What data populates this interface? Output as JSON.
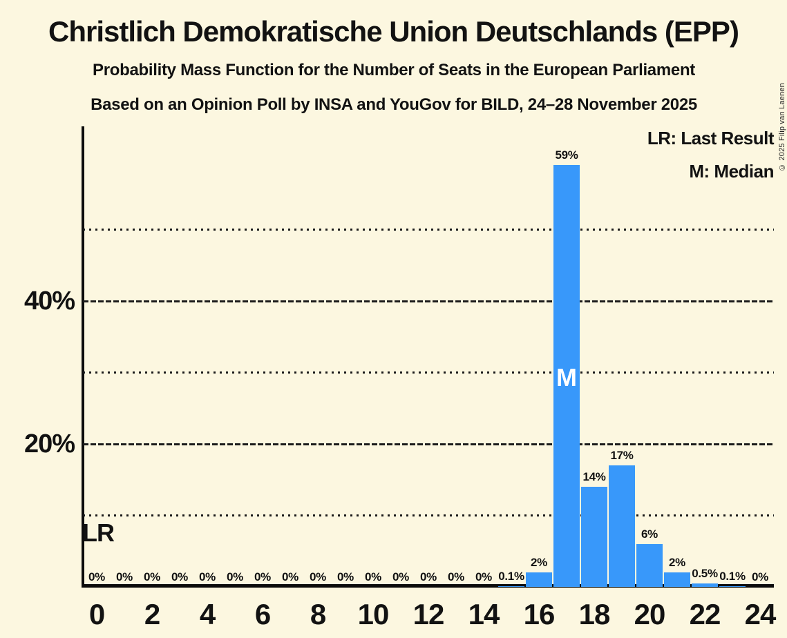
{
  "title": "Christlich Demokratische Union Deutschlands (EPP)",
  "subtitle1": "Probability Mass Function for the Number of Seats in the European Parliament",
  "subtitle2": "Based on an Opinion Poll by INSA and YouGov for BILD, 24–28 November 2025",
  "copyright": "© 2025 Filip van Laenen",
  "legend": {
    "lr": "LR: Last Result",
    "m": "M: Median"
  },
  "chart_data": {
    "type": "bar",
    "title": "Christlich Demokratische Union Deutschlands (EPP)",
    "x": [
      0,
      1,
      2,
      3,
      4,
      5,
      6,
      7,
      8,
      9,
      10,
      11,
      12,
      13,
      14,
      15,
      16,
      17,
      18,
      19,
      20,
      21,
      22,
      23,
      24
    ],
    "values": [
      0,
      0,
      0,
      0,
      0,
      0,
      0,
      0,
      0,
      0,
      0,
      0,
      0,
      0,
      0,
      0.1,
      2,
      59,
      14,
      17,
      6,
      2,
      0.5,
      0.1,
      0
    ],
    "bar_labels": [
      "0%",
      "0%",
      "0%",
      "0%",
      "0%",
      "0%",
      "0%",
      "0%",
      "0%",
      "0%",
      "0%",
      "0%",
      "0%",
      "0%",
      "0%",
      "0.1%",
      "2%",
      "59%",
      "14%",
      "17%",
      "6%",
      "2%",
      "0.5%",
      "0.1%",
      "0%"
    ],
    "x_tick_labels": [
      "0",
      "2",
      "4",
      "6",
      "8",
      "10",
      "12",
      "14",
      "16",
      "18",
      "20",
      "22",
      "24"
    ],
    "y_tick_labels": [
      {
        "value": 20,
        "label": "20%"
      },
      {
        "value": 40,
        "label": "40%"
      }
    ],
    "ylim": [
      0,
      64
    ],
    "gridlines": [
      {
        "value": 10,
        "style": "dotted"
      },
      {
        "value": 20,
        "style": "dashed"
      },
      {
        "value": 30,
        "style": "dotted"
      },
      {
        "value": 40,
        "style": "dashed"
      },
      {
        "value": 50,
        "style": "dotted"
      }
    ],
    "legend_position": "top-right",
    "annotations": {
      "last_result_label": "LR",
      "last_result_seat": 0,
      "median_label": "M",
      "median_seat": 17
    },
    "colors": {
      "bar": "#3898FA",
      "background": "#FCF7E0",
      "text": "#121212",
      "median_text": "#FFFFFF"
    }
  }
}
